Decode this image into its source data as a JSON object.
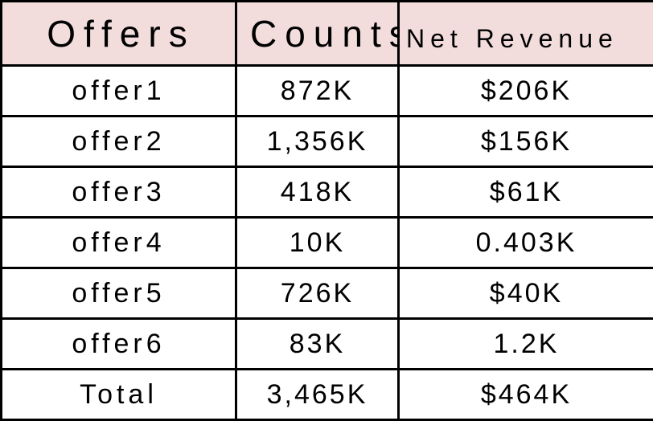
{
  "table": {
    "headers": {
      "offers": "Offers",
      "counts": "Counts",
      "net_revenue": "Net Revenue"
    },
    "rows": [
      {
        "offer": "offer1",
        "counts": "872K",
        "net_revenue": "$206K"
      },
      {
        "offer": "offer2",
        "counts": "1,356K",
        "net_revenue": "$156K"
      },
      {
        "offer": "offer3",
        "counts": "418K",
        "net_revenue": "$61K"
      },
      {
        "offer": "offer4",
        "counts": "10K",
        "net_revenue": "0.403K"
      },
      {
        "offer": "offer5",
        "counts": "726K",
        "net_revenue": "$40K"
      },
      {
        "offer": "offer6",
        "counts": "83K",
        "net_revenue": "1.2K"
      }
    ],
    "total": {
      "label": "Total",
      "counts": "3,465K",
      "net_revenue": "$464K"
    }
  },
  "colors": {
    "header_background": "#f2dcdc",
    "border": "#000000",
    "text": "#000000"
  }
}
